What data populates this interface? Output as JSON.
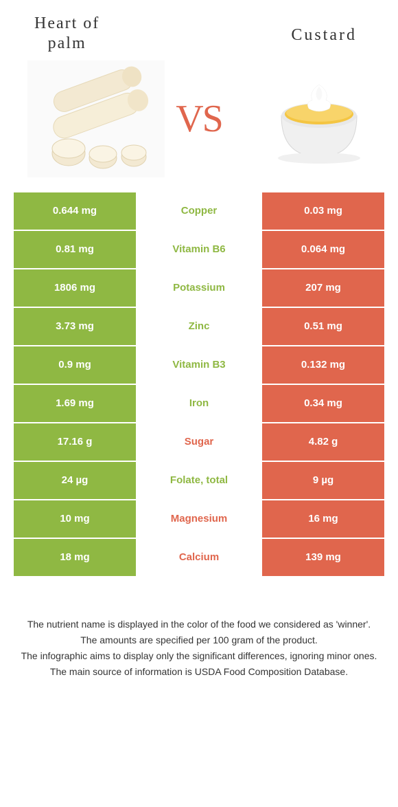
{
  "colors": {
    "left_bg": "#8fb843",
    "right_bg": "#e0664d",
    "left_text": "#8fb843",
    "right_text": "#e0664d",
    "vs_color": "#e0664d"
  },
  "header": {
    "left_line1": "Heart of",
    "left_line2": "palm",
    "right": "Custard",
    "vs": "VS"
  },
  "rows": [
    {
      "left": "0.644 mg",
      "nutrient": "Copper",
      "right": "0.03 mg",
      "winner": "left"
    },
    {
      "left": "0.81 mg",
      "nutrient": "Vitamin B6",
      "right": "0.064 mg",
      "winner": "left"
    },
    {
      "left": "1806 mg",
      "nutrient": "Potassium",
      "right": "207 mg",
      "winner": "left"
    },
    {
      "left": "3.73 mg",
      "nutrient": "Zinc",
      "right": "0.51 mg",
      "winner": "left"
    },
    {
      "left": "0.9 mg",
      "nutrient": "Vitamin B3",
      "right": "0.132 mg",
      "winner": "left"
    },
    {
      "left": "1.69 mg",
      "nutrient": "Iron",
      "right": "0.34 mg",
      "winner": "left"
    },
    {
      "left": "17.16 g",
      "nutrient": "Sugar",
      "right": "4.82 g",
      "winner": "right"
    },
    {
      "left": "24 µg",
      "nutrient": "Folate, total",
      "right": "9 µg",
      "winner": "left"
    },
    {
      "left": "10 mg",
      "nutrient": "Magnesium",
      "right": "16 mg",
      "winner": "right"
    },
    {
      "left": "18 mg",
      "nutrient": "Calcium",
      "right": "139 mg",
      "winner": "right"
    }
  ],
  "footer": {
    "line1": "The nutrient name is displayed in the color of the food we considered as 'winner'.",
    "line2": "The amounts are specified per 100 gram of the product.",
    "line3": "The infographic aims to display only the significant differences, ignoring minor ones.",
    "line4": "The main source of information is USDA Food Composition Database."
  }
}
